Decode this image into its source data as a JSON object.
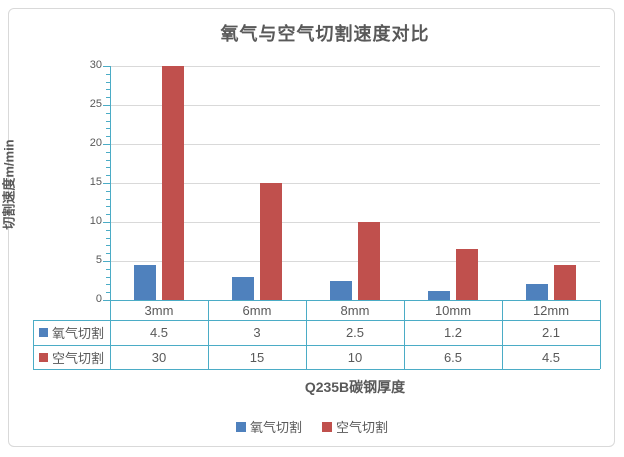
{
  "title": "氧气与空气切割速度对比",
  "axes": {
    "y_title": "切割速度m/min",
    "x_title": "Q235B碳钢厚度"
  },
  "legend": {
    "items": [
      "氧气切割",
      "空气切割"
    ]
  },
  "colors": {
    "series_oxygen": "#4F81BD",
    "series_air": "#C0504D",
    "axis": "#4BACC6",
    "grid": "#D9D9D9",
    "text": "#595959",
    "frame_border": "#D9D9D9",
    "background": "#FFFFFF"
  },
  "chart_data": {
    "type": "bar",
    "title": "氧气与空气切割速度对比",
    "categories": [
      "3mm",
      "6mm",
      "8mm",
      "10mm",
      "12mm"
    ],
    "series": [
      {
        "name": "氧气切割",
        "color": "#4F81BD",
        "values": [
          4.5,
          3,
          2.5,
          1.2,
          2.1
        ]
      },
      {
        "name": "空气切割",
        "color": "#C0504D",
        "values": [
          30,
          15,
          10,
          6.5,
          4.5
        ]
      }
    ],
    "xlabel": "Q235B碳钢厚度",
    "ylabel": "切割速度m/min",
    "ylim": [
      0,
      30
    ],
    "ytick_step": 5,
    "y_tick_labels": [
      "0",
      "5",
      "10",
      "15",
      "20",
      "25",
      "30"
    ],
    "grid": true,
    "legend_position": "bottom",
    "data_table_shown": true
  }
}
